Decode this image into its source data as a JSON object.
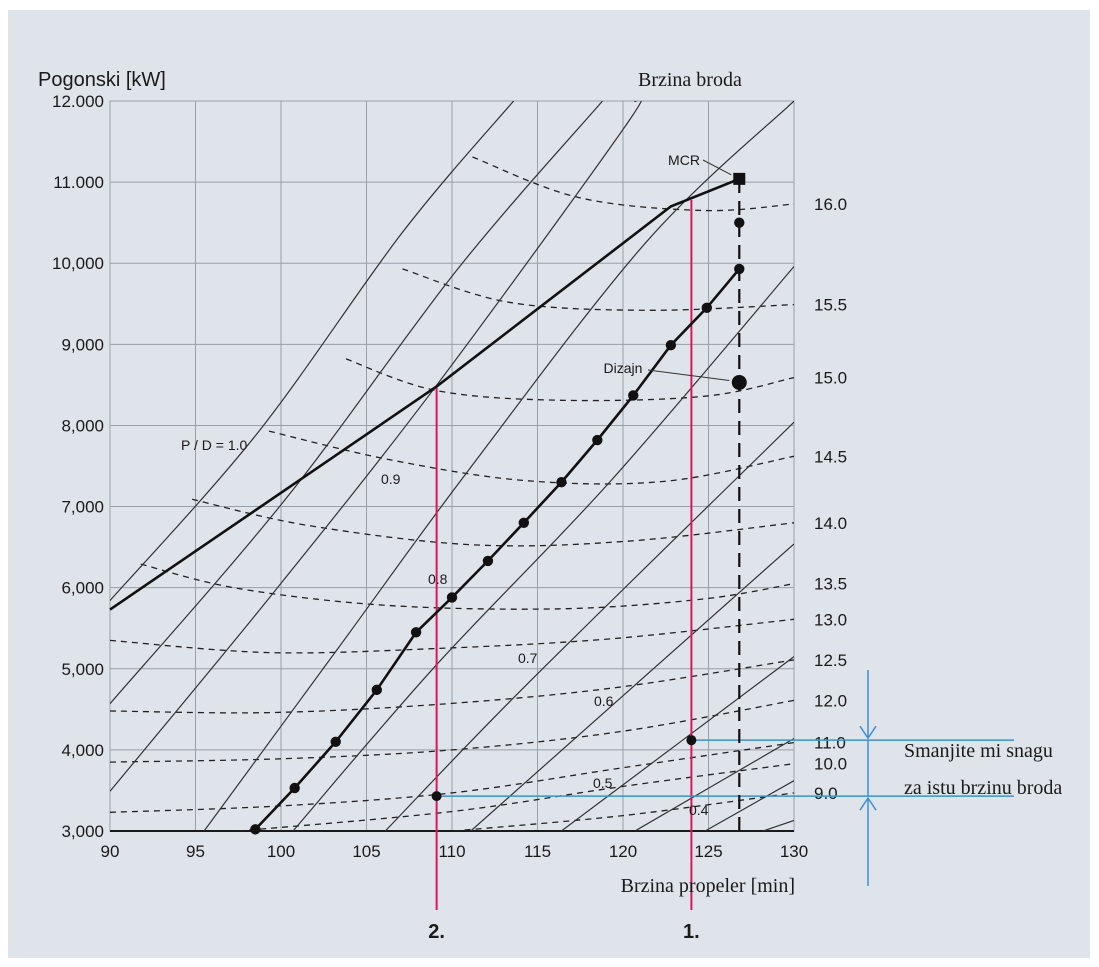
{
  "chart_data": {
    "type": "line",
    "title": "",
    "ylabel": "Pogonski [kW]",
    "xlabel": "Brzina propeler [min]",
    "right_axis_title": "Brzina broda",
    "xlim": [
      90,
      130
    ],
    "ylim": [
      3000,
      12000
    ],
    "grid": true,
    "x_ticks": [
      "90",
      "95",
      "100",
      "105",
      "110",
      "115",
      "120",
      "125",
      "130"
    ],
    "y_ticks": [
      {
        "value": 3000,
        "label": "3,000"
      },
      {
        "value": 4000,
        "label": "4,000"
      },
      {
        "value": 5000,
        "label": "5,000"
      },
      {
        "value": 6000,
        "label": "6,000"
      },
      {
        "value": 7000,
        "label": "7,000"
      },
      {
        "value": 8000,
        "label": "8,000"
      },
      {
        "value": 9000,
        "label": "9,000"
      },
      {
        "value": 10000,
        "label": "10,000"
      },
      {
        "value": 11000,
        "label": "11.000"
      },
      {
        "value": 12000,
        "label": "12.000"
      }
    ],
    "pd_lines": [
      {
        "label": "P / D = 1.0",
        "points": [
          [
            90,
            5840
          ],
          [
            98.6,
            7900
          ],
          [
            107.1,
            10380
          ],
          [
            113.6,
            12000
          ]
        ]
      },
      {
        "label": "0.9",
        "points": [
          [
            90,
            4570
          ],
          [
            100.3,
            7100
          ],
          [
            110.3,
            9920
          ],
          [
            118.8,
            12000
          ]
        ]
      },
      {
        "label": "",
        "points": [
          [
            90,
            3490
          ],
          [
            99.3,
            5870
          ],
          [
            108.9,
            8440
          ],
          [
            120.1,
            11680
          ],
          [
            120.7,
            12000
          ]
        ]
      },
      {
        "label": "0.8",
        "points": [
          [
            95.5,
            3000
          ],
          [
            103.4,
            5270
          ],
          [
            110.9,
            7430
          ],
          [
            121.4,
            10270
          ],
          [
            130,
            12000
          ]
        ]
      },
      {
        "label": "0.7",
        "points": [
          [
            100.7,
            3000
          ],
          [
            109.1,
            5050
          ],
          [
            119.3,
            7320
          ],
          [
            130,
            9960
          ]
        ]
      },
      {
        "label": "0.6",
        "points": [
          [
            106.1,
            3000
          ],
          [
            114.3,
            4790
          ],
          [
            130,
            8040
          ]
        ]
      },
      {
        "label": "",
        "points": [
          [
            111.1,
            3000
          ],
          [
            130,
            6540
          ]
        ]
      },
      {
        "label": "0.5",
        "points": [
          [
            116.4,
            3000
          ],
          [
            130,
            5150
          ]
        ]
      },
      {
        "label": "0.4",
        "points": [
          [
            120.7,
            3000
          ],
          [
            130,
            4140
          ]
        ]
      },
      {
        "label": "",
        "points": [
          [
            124.8,
            3000
          ],
          [
            130,
            3620
          ]
        ]
      },
      {
        "label": "",
        "points": [
          [
            128.2,
            3000
          ],
          [
            130,
            3130
          ]
        ]
      }
    ],
    "speed_curves": [
      {
        "label": "16.0",
        "points": [
          [
            111.2,
            11310
          ],
          [
            117.4,
            10810
          ],
          [
            124.7,
            10650
          ],
          [
            130,
            10730
          ]
        ]
      },
      {
        "label": "15.5",
        "points": [
          [
            107.1,
            9930
          ],
          [
            113.3,
            9520
          ],
          [
            121.4,
            9420
          ],
          [
            130,
            9490
          ]
        ]
      },
      {
        "label": "15.0",
        "points": [
          [
            103.8,
            8820
          ],
          [
            109.1,
            8430
          ],
          [
            116.4,
            8310
          ],
          [
            124.8,
            8360
          ],
          [
            130,
            8590
          ]
        ]
      },
      {
        "label": "14.5",
        "points": [
          [
            99.3,
            7930
          ],
          [
            106.3,
            7580
          ],
          [
            114.3,
            7320
          ],
          [
            122.4,
            7310
          ],
          [
            130,
            7620
          ]
        ]
      },
      {
        "label": "14.0",
        "points": [
          [
            94.8,
            7090
          ],
          [
            101.5,
            6770
          ],
          [
            111.1,
            6530
          ],
          [
            120.1,
            6570
          ],
          [
            130,
            6800
          ]
        ]
      },
      {
        "label": "13.5",
        "points": [
          [
            91.8,
            6290
          ],
          [
            97.5,
            5990
          ],
          [
            106.3,
            5780
          ],
          [
            116.4,
            5740
          ],
          [
            124.7,
            5860
          ],
          [
            130,
            6050
          ]
        ]
      },
      {
        "label": "13.0",
        "points": [
          [
            90,
            5350
          ],
          [
            99.3,
            5200
          ],
          [
            109.1,
            5250
          ],
          [
            119.3,
            5370
          ],
          [
            130,
            5610
          ]
        ]
      },
      {
        "label": "12.5",
        "points": [
          [
            90,
            4480
          ],
          [
            99.3,
            4460
          ],
          [
            109.1,
            4560
          ],
          [
            119.3,
            4760
          ],
          [
            130,
            5110
          ]
        ]
      },
      {
        "label": "12.0",
        "points": [
          [
            90,
            3850
          ],
          [
            100,
            3890
          ],
          [
            110,
            4000
          ],
          [
            120,
            4230
          ],
          [
            130,
            4610
          ]
        ]
      },
      {
        "label": "11.0",
        "points": [
          [
            90,
            3230
          ],
          [
            100,
            3310
          ],
          [
            110,
            3470
          ],
          [
            120,
            3780
          ],
          [
            130,
            4090
          ]
        ]
      },
      {
        "label": "10.0",
        "points": [
          [
            97.5,
            3000
          ],
          [
            110,
            3240
          ],
          [
            120,
            3550
          ],
          [
            130,
            3830
          ]
        ]
      },
      {
        "label": "9.0",
        "points": [
          [
            110.1,
            3000
          ],
          [
            120,
            3190
          ],
          [
            130,
            3470
          ]
        ]
      }
    ],
    "engine_limit_curve": {
      "points": [
        [
          90,
          5730
        ],
        [
          109.1,
          8480
        ],
        [
          122.8,
          10700
        ],
        [
          126.8,
          11040
        ]
      ]
    },
    "operating_curve": {
      "points": [
        [
          98.5,
          3020
        ],
        [
          100.8,
          3530
        ],
        [
          103.2,
          4100
        ],
        [
          105.6,
          4740
        ],
        [
          107.9,
          5450
        ],
        [
          110,
          5880
        ],
        [
          112.1,
          6330
        ],
        [
          114.2,
          6800
        ],
        [
          116.4,
          7300
        ],
        [
          118.5,
          7820
        ],
        [
          120.6,
          8370
        ],
        [
          122.8,
          8990
        ],
        [
          124.9,
          9450
        ],
        [
          126.8,
          9930
        ],
        [
          126.8,
          10500
        ]
      ]
    },
    "design_point": {
      "label": "Dizajn",
      "x": 126.8,
      "y": 8530
    },
    "mcr_point": {
      "label": "MCR",
      "x": 126.8,
      "y": 11040
    },
    "design_rpm_dashed": {
      "x": 126.8,
      "y_from": 3000,
      "y_to": 11040
    },
    "operating_points": [
      {
        "label": "1.",
        "x": 124,
        "y_top": 10780,
        "marker_y": 4120
      },
      {
        "label": "2.",
        "x": 109.1,
        "y_top": 8480,
        "marker_y": 3430
      }
    ],
    "annotation": [
      "Smanjite mi snagu",
      "za istu brzinu broda"
    ],
    "colors": {
      "operating_line": "#e0145a",
      "annotation_line": "#3d8fd6",
      "background": "#dfe3ea",
      "curves": "#1a1a1a"
    }
  }
}
